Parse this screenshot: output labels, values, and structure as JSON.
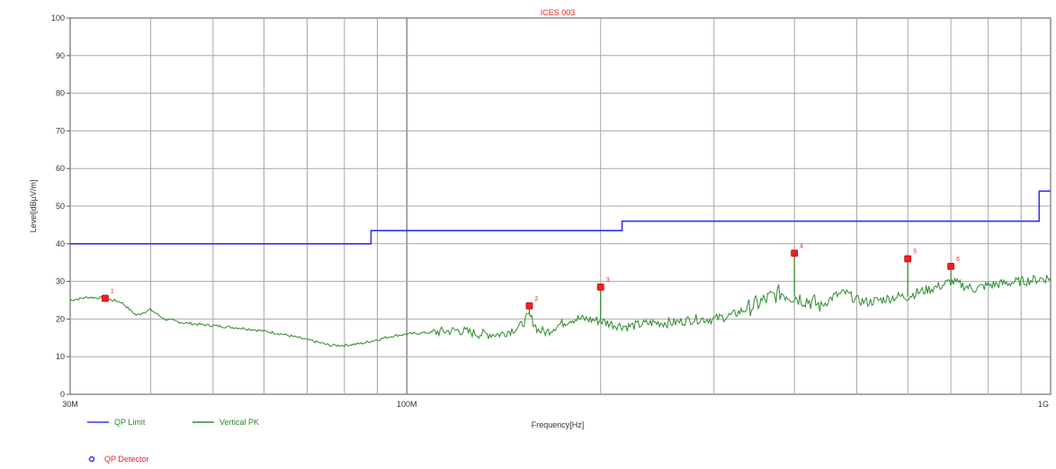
{
  "chart_data": {
    "type": "line",
    "title": "ICES 003",
    "xlabel": "Frequency[Hz]",
    "ylabel": "Level[dBμV/m]",
    "x_scale": "log",
    "xlim_hz": [
      30000000,
      1000000000
    ],
    "ylim": [
      0,
      100
    ],
    "grid": true,
    "x_ticks": [
      {
        "value": 30000000,
        "label": "30M"
      },
      {
        "value": 100000000,
        "label": "100M"
      },
      {
        "value": 1000000000,
        "label": "1G"
      }
    ],
    "y_ticks": [
      0,
      10,
      20,
      30,
      40,
      50,
      60,
      70,
      80,
      90,
      100
    ],
    "colors": {
      "limit": "#3333ee",
      "trace": "#2e8b2e",
      "marker": "#ee2222",
      "title": "#ee2222",
      "legend_text": "#2e8b2e",
      "detector_text": "#ee2222",
      "grid": "#a8a8a8"
    },
    "series": [
      {
        "name": "QP Limit",
        "kind": "step",
        "points": [
          [
            30000000,
            40
          ],
          [
            88000000,
            40
          ],
          [
            88000000,
            43.5
          ],
          [
            216000000,
            43.5
          ],
          [
            216000000,
            46
          ],
          [
            960000000,
            46
          ],
          [
            960000000,
            54
          ],
          [
            1000000000,
            54
          ]
        ]
      },
      {
        "name": "Vertical PK",
        "kind": "trace",
        "points": [
          [
            30000000,
            25
          ],
          [
            32000000,
            25.8
          ],
          [
            34000000,
            25.5
          ],
          [
            36000000,
            24.5
          ],
          [
            38000000,
            21
          ],
          [
            40000000,
            22.5
          ],
          [
            42000000,
            20
          ],
          [
            45000000,
            19
          ],
          [
            48000000,
            18.5
          ],
          [
            52000000,
            18
          ],
          [
            56000000,
            17.5
          ],
          [
            60000000,
            16.8
          ],
          [
            64000000,
            16
          ],
          [
            68000000,
            15
          ],
          [
            72000000,
            14
          ],
          [
            76000000,
            13
          ],
          [
            80000000,
            13
          ],
          [
            85000000,
            13.5
          ],
          [
            90000000,
            14.5
          ],
          [
            95000000,
            15.5
          ],
          [
            100000000,
            16
          ],
          [
            110000000,
            16.5
          ],
          [
            120000000,
            17
          ],
          [
            130000000,
            16
          ],
          [
            140000000,
            16
          ],
          [
            150000000,
            18
          ],
          [
            155000000,
            21
          ],
          [
            160000000,
            17
          ],
          [
            165000000,
            16.5
          ],
          [
            170000000,
            18
          ],
          [
            180000000,
            20
          ],
          [
            190000000,
            20
          ],
          [
            200000000,
            19.5
          ],
          [
            210000000,
            18.5
          ],
          [
            220000000,
            18
          ],
          [
            240000000,
            19
          ],
          [
            260000000,
            19
          ],
          [
            280000000,
            20
          ],
          [
            300000000,
            20
          ],
          [
            320000000,
            21
          ],
          [
            340000000,
            23
          ],
          [
            360000000,
            25
          ],
          [
            380000000,
            27
          ],
          [
            400000000,
            26
          ],
          [
            420000000,
            25
          ],
          [
            440000000,
            23.5
          ],
          [
            460000000,
            26
          ],
          [
            480000000,
            27
          ],
          [
            500000000,
            25
          ],
          [
            520000000,
            24.5
          ],
          [
            540000000,
            25
          ],
          [
            560000000,
            25.5
          ],
          [
            580000000,
            26
          ],
          [
            600000000,
            26
          ],
          [
            620000000,
            27
          ],
          [
            650000000,
            28
          ],
          [
            680000000,
            29
          ],
          [
            700000000,
            30
          ],
          [
            730000000,
            29
          ],
          [
            760000000,
            28
          ],
          [
            800000000,
            29
          ],
          [
            850000000,
            29.5
          ],
          [
            900000000,
            30
          ],
          [
            950000000,
            30.5
          ],
          [
            1000000000,
            31
          ]
        ],
        "spikes": [
          [
            155000000,
            23.5
          ],
          [
            200000000,
            28.5
          ],
          [
            400000000,
            37.5
          ],
          [
            600000000,
            36
          ],
          [
            700000000,
            34
          ]
        ]
      },
      {
        "name": "QP Detector",
        "kind": "markers",
        "points": [
          {
            "label": "1",
            "x": 34000000,
            "y": 25.5
          },
          {
            "label": "2",
            "x": 155000000,
            "y": 23.5
          },
          {
            "label": "3",
            "x": 200000000,
            "y": 28.5
          },
          {
            "label": "4",
            "x": 400000000,
            "y": 37.5
          },
          {
            "label": "5",
            "x": 600000000,
            "y": 36
          },
          {
            "label": "6",
            "x": 700000000,
            "y": 34
          }
        ]
      }
    ],
    "legend": {
      "placement": "bottom-left",
      "items": [
        {
          "label": "QP Limit",
          "series": "QP Limit"
        },
        {
          "label": "Vertical PK",
          "series": "Vertical PK"
        },
        {
          "label": "QP Detector",
          "series": "QP Detector"
        }
      ]
    }
  }
}
